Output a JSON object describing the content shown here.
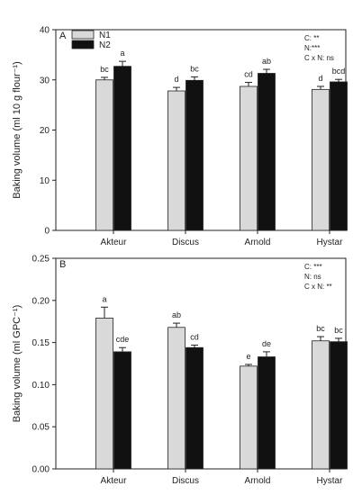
{
  "chart_data": [
    {
      "type": "bar",
      "panel": "A",
      "ylabel": "Baking volume (ml 10 g flour⁻¹)",
      "ylim": [
        0,
        40
      ],
      "yticks": [
        "0",
        "10",
        "20",
        "30",
        "40"
      ],
      "categories": [
        "Akteur",
        "Discus",
        "Arnold",
        "Hystar"
      ],
      "series": [
        {
          "name": "N1",
          "color": "#d9d9d9",
          "values": [
            30.0,
            27.8,
            28.7,
            28.1
          ],
          "errors": [
            0.5,
            0.7,
            0.8,
            0.6
          ],
          "letters": [
            "bc",
            "d",
            "cd",
            "d"
          ]
        },
        {
          "name": "N2",
          "color": "#111111",
          "values": [
            32.7,
            29.9,
            31.3,
            29.6
          ],
          "errors": [
            1.0,
            0.7,
            0.8,
            0.5
          ],
          "letters": [
            "a",
            "bc",
            "ab",
            "bcd"
          ]
        }
      ],
      "stats": [
        "C: **",
        "N:***",
        "C x N: ns"
      ],
      "legend_position": "top-left"
    },
    {
      "type": "bar",
      "panel": "B",
      "ylabel": "Baking volume (ml GPC⁻¹)",
      "ylim": [
        0,
        0.25
      ],
      "yticks": [
        "0.00",
        "0.05",
        "0.10",
        "0.15",
        "0.20",
        "0.25"
      ],
      "categories": [
        "Akteur",
        "Discus",
        "Arnold",
        "Hystar"
      ],
      "series": [
        {
          "name": "N1",
          "color": "#d9d9d9",
          "values": [
            0.179,
            0.168,
            0.122,
            0.152
          ],
          "errors": [
            0.013,
            0.005,
            0.002,
            0.005
          ],
          "letters": [
            "a",
            "ab",
            "e",
            "bc"
          ]
        },
        {
          "name": "N2",
          "color": "#111111",
          "values": [
            0.139,
            0.144,
            0.133,
            0.151
          ],
          "errors": [
            0.005,
            0.003,
            0.006,
            0.004
          ],
          "letters": [
            "cde",
            "cd",
            "de",
            "bc"
          ]
        }
      ],
      "stats": [
        "C: ***",
        "N: ns",
        "C x N: **"
      ]
    }
  ]
}
